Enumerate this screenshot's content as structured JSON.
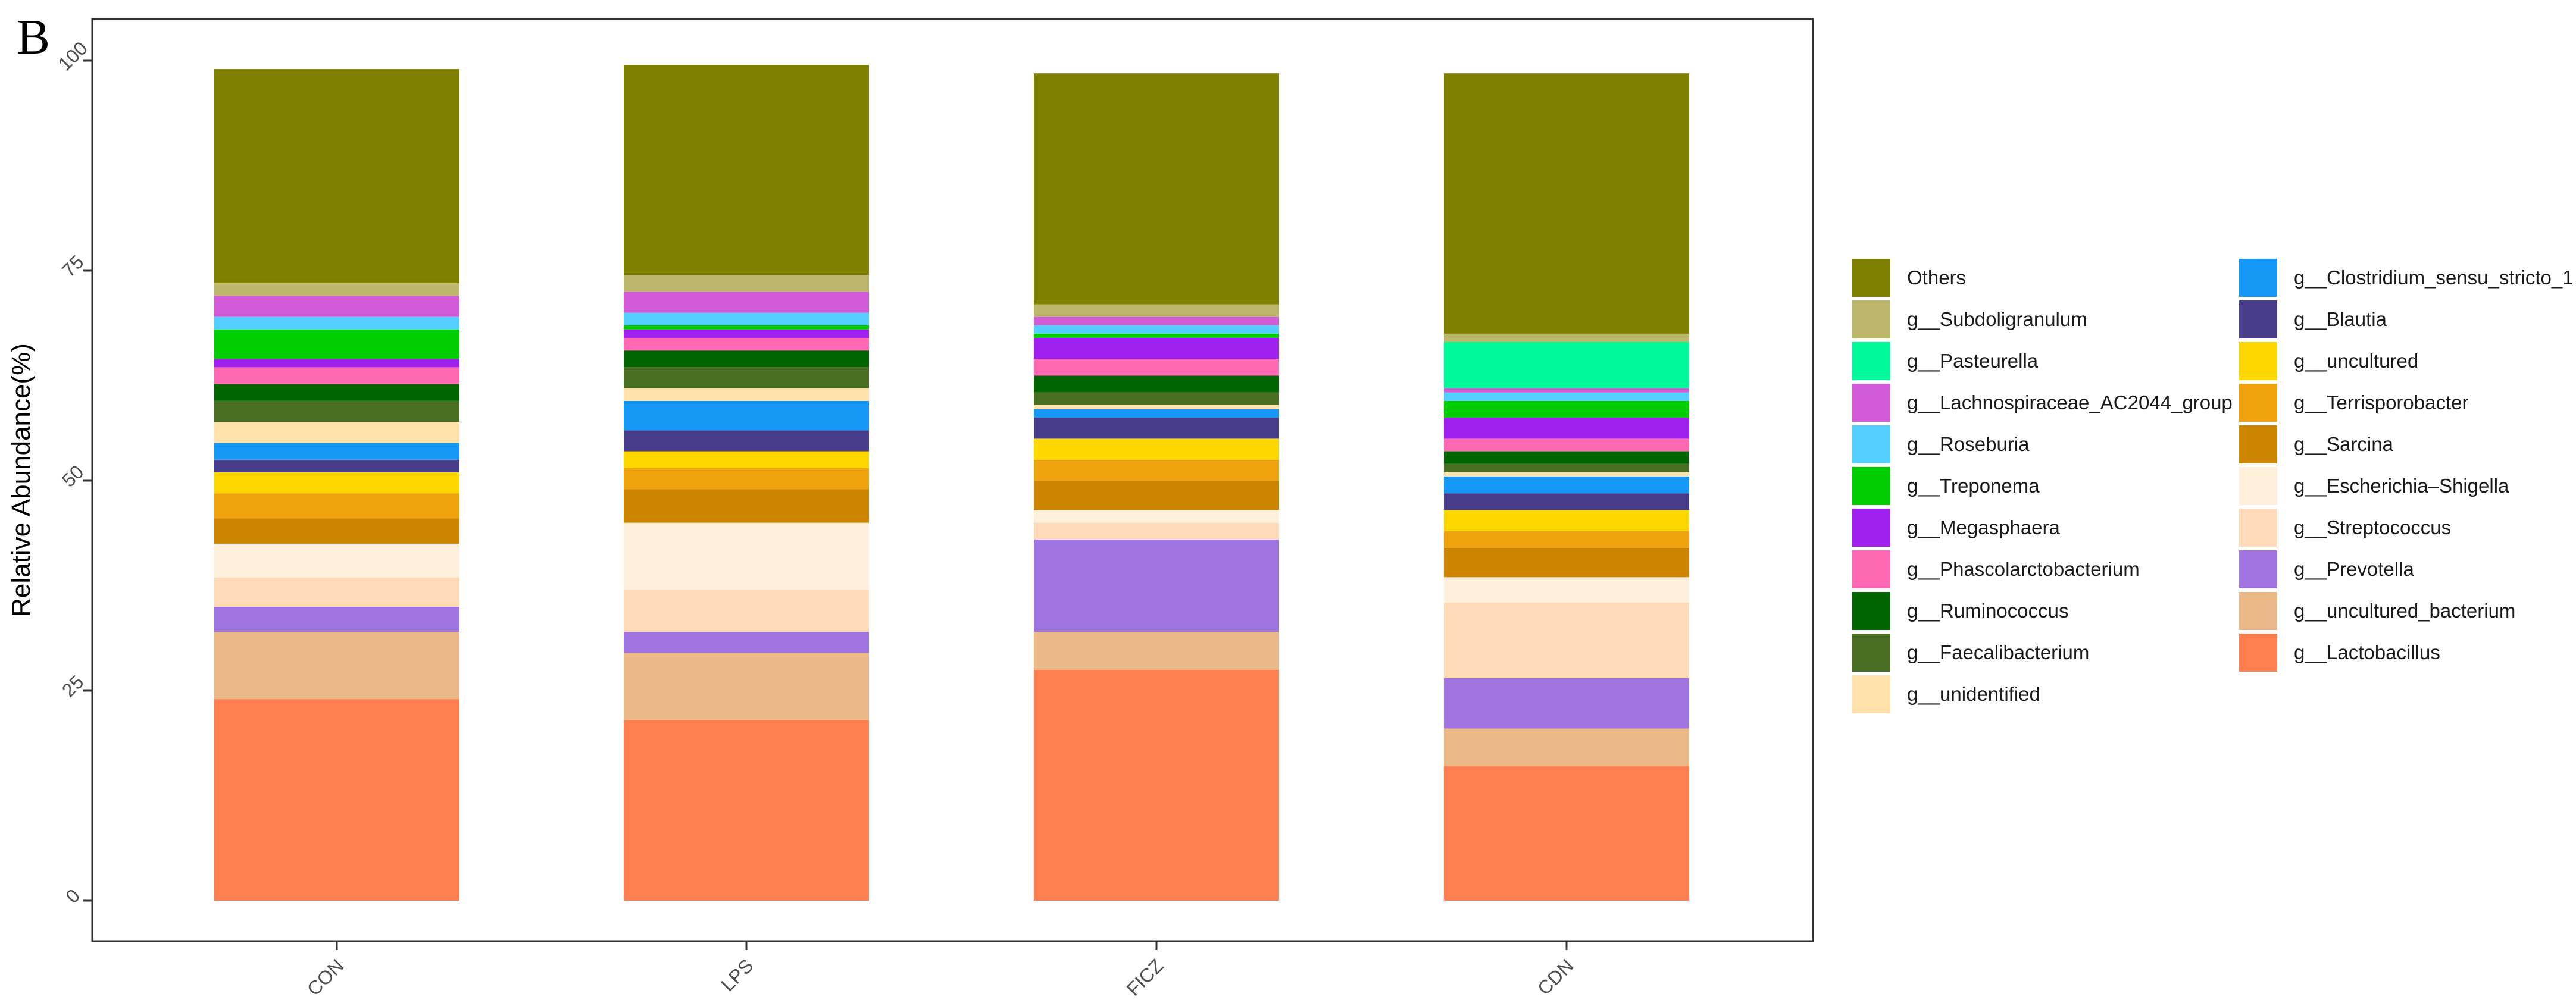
{
  "figure": {
    "panel_label": "B"
  },
  "chart_data": {
    "type": "bar",
    "stacked": true,
    "ylabel": "Relative Abundance(%)",
    "xlabel": "",
    "ylim": [
      0,
      100
    ],
    "yticks": [
      0,
      25,
      50,
      75,
      100
    ],
    "categories": [
      "CON",
      "LPS",
      "FICZ",
      "CDN"
    ],
    "legend_placement": "right",
    "series": [
      {
        "name": "g__Lactobacillus",
        "color": "#FF7F50",
        "values": [
          24.0,
          21.5,
          27.5,
          16.0
        ]
      },
      {
        "name": "g__uncultured_bacterium",
        "color": "#EDB887",
        "values": [
          8.0,
          8.0,
          4.5,
          4.5
        ]
      },
      {
        "name": "g__Prevotella",
        "color": "#9F74E0",
        "values": [
          3.0,
          2.5,
          11.0,
          6.0
        ]
      },
      {
        "name": "g__Streptococcus",
        "color": "#FFDAB9",
        "values": [
          3.5,
          5.0,
          2.0,
          9.0
        ]
      },
      {
        "name": "g__Escherichia–Shigella",
        "color": "#FFF0DB",
        "values": [
          4.0,
          8.0,
          1.5,
          3.0
        ]
      },
      {
        "name": "g__Sarcina",
        "color": "#CD8500",
        "values": [
          3.0,
          4.0,
          3.5,
          3.5
        ]
      },
      {
        "name": "g__Terrisporobacter",
        "color": "#EEA20D",
        "values": [
          3.0,
          2.5,
          2.5,
          2.0
        ]
      },
      {
        "name": "g__uncultured",
        "color": "#FFD700",
        "values": [
          2.5,
          2.0,
          2.5,
          2.5
        ]
      },
      {
        "name": "g__Blautia",
        "color": "#483D8B",
        "values": [
          1.5,
          2.5,
          2.5,
          2.0
        ]
      },
      {
        "name": "g__Clostridium_sensu_stricto_1",
        "color": "#1597F5",
        "values": [
          2.0,
          3.5,
          1.0,
          2.0
        ]
      },
      {
        "name": "g__unidentified",
        "color": "#FFE1A9",
        "values": [
          2.5,
          1.5,
          0.5,
          0.5
        ]
      },
      {
        "name": "g__Faecalibacterium",
        "color": "#486F24",
        "values": [
          2.5,
          2.5,
          1.5,
          1.0
        ]
      },
      {
        "name": "g__Ruminococcus",
        "color": "#006400",
        "values": [
          2.0,
          2.0,
          2.0,
          1.5
        ]
      },
      {
        "name": "g__Phascolarctobacterium",
        "color": "#FF69B4",
        "values": [
          2.0,
          1.5,
          2.0,
          1.5
        ]
      },
      {
        "name": "g__Megasphaera",
        "color": "#A020F0",
        "values": [
          1.0,
          1.0,
          2.5,
          2.5
        ]
      },
      {
        "name": "g__Treponema",
        "color": "#00CD00",
        "values": [
          3.5,
          0.5,
          0.5,
          2.0
        ]
      },
      {
        "name": "g__Roseburia",
        "color": "#53CEFF",
        "values": [
          1.5,
          1.5,
          1.0,
          1.0
        ]
      },
      {
        "name": "g__Lachnospiraceae_AC2044_group",
        "color": "#D15AD6",
        "values": [
          2.5,
          2.5,
          1.0,
          0.5
        ]
      },
      {
        "name": "g__Pasteurella",
        "color": "#00FA9A",
        "values": [
          0.0,
          0.0,
          0.0,
          5.5
        ]
      },
      {
        "name": "g__Subdoligranulum",
        "color": "#BDB76B",
        "values": [
          1.5,
          2.0,
          1.5,
          1.0
        ]
      },
      {
        "name": "Others",
        "color": "#808000",
        "values": [
          25.5,
          25.0,
          27.5,
          31.0
        ]
      }
    ],
    "legend_order": [
      "Others",
      "g__Subdoligranulum",
      "g__Pasteurella",
      "g__Lachnospiraceae_AC2044_group",
      "g__Roseburia",
      "g__Treponema",
      "g__Megasphaera",
      "g__Phascolarctobacterium",
      "g__Ruminococcus",
      "g__Faecalibacterium",
      "g__unidentified",
      "g__Clostridium_sensu_stricto_1",
      "g__Blautia",
      "g__uncultured",
      "g__Terrisporobacter",
      "g__Sarcina",
      "g__Escherichia–Shigella",
      "g__Streptococcus",
      "g__Prevotella",
      "g__uncultured_bacterium",
      "g__Lactobacillus"
    ]
  }
}
